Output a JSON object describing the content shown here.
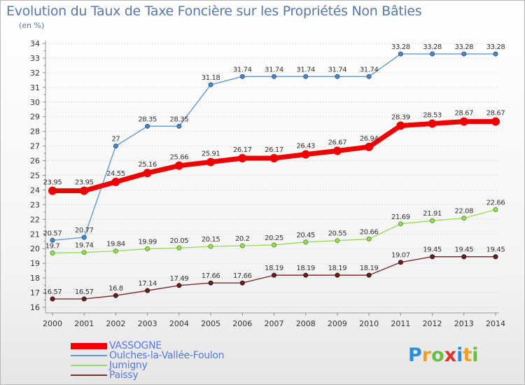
{
  "chart_data": {
    "type": "line",
    "title": "Evolution du Taux de Taxe Foncière sur les Propriétés Non Bâties",
    "ylabel": "(en %)",
    "x": [
      "2000",
      "2001",
      "2002",
      "2003",
      "2004",
      "2005",
      "2006",
      "2007",
      "2008",
      "2009",
      "2010",
      "2011",
      "2012",
      "2013",
      "2014"
    ],
    "ylim": [
      16,
      34
    ],
    "yticks": [
      16,
      17,
      18,
      19,
      20,
      21,
      22,
      23,
      24,
      25,
      26,
      27,
      28,
      29,
      30,
      31,
      32,
      33,
      34
    ],
    "grid": "horizontal dotted",
    "legend": "bottom-left",
    "series": [
      {
        "name": "VASSOGNE",
        "color": "#ee0000",
        "values": [
          23.95,
          23.95,
          24.55,
          25.16,
          25.66,
          25.91,
          26.17,
          26.17,
          26.43,
          26.67,
          26.94,
          28.39,
          28.53,
          28.67,
          28.67
        ],
        "labels": [
          "23.95",
          "23.95",
          "24.55",
          "25.16",
          "25.66",
          "25.91",
          "26.17",
          "26.17",
          "26.43",
          "26.67",
          "26.94",
          "28.39",
          "28.53",
          "28.67",
          "28.67"
        ]
      },
      {
        "name": "Oulches-la-Vallée-Foulon",
        "color": "#5e9ad6",
        "values": [
          20.57,
          20.77,
          27,
          28.35,
          28.35,
          31.18,
          31.74,
          31.74,
          31.74,
          31.74,
          31.74,
          33.28,
          33.28,
          33.28,
          33.28
        ],
        "labels": [
          "20.57",
          "20.77",
          "27",
          "28.35",
          "28.35",
          "31.18",
          "31.74",
          "31.74",
          "31.74",
          "31.74",
          "31.74",
          "33.28",
          "33.28",
          "33.28",
          "33.28"
        ]
      },
      {
        "name": "Jumigny",
        "color": "#98dc58",
        "values": [
          19.7,
          19.74,
          19.84,
          19.99,
          20.05,
          20.15,
          20.2,
          20.25,
          20.45,
          20.55,
          20.66,
          21.69,
          21.91,
          22.08,
          22.66
        ],
        "labels": [
          "19.7",
          "19.74",
          "19.84",
          "19.99",
          "20.05",
          "20.15",
          "20.2",
          "20.25",
          "20.45",
          "20.55",
          "20.66",
          "21.69",
          "21.91",
          "22.08",
          "22.66"
        ]
      },
      {
        "name": "Paissy",
        "color": "#7a2e2e",
        "values": [
          16.57,
          16.57,
          16.8,
          17.14,
          17.49,
          17.66,
          17.66,
          18.19,
          18.19,
          18.19,
          18.19,
          19.07,
          19.45,
          19.45,
          19.45
        ],
        "labels": [
          "16.57",
          "16.57",
          "16.8",
          "17.14",
          "17.49",
          "17.66",
          "17.66",
          "18.19",
          "18.19",
          "18.19",
          "18.19",
          "19.07",
          "19.45",
          "19.45",
          "19.45"
        ]
      }
    ]
  },
  "logo": {
    "letters": [
      "P",
      "r",
      "o",
      "x",
      "i",
      "t",
      "i"
    ],
    "colors": [
      "#2a8fd8",
      "#f0a020",
      "#68c040",
      "#e03030",
      "#2a8fd8",
      "#f0a020",
      "#68c040"
    ]
  }
}
